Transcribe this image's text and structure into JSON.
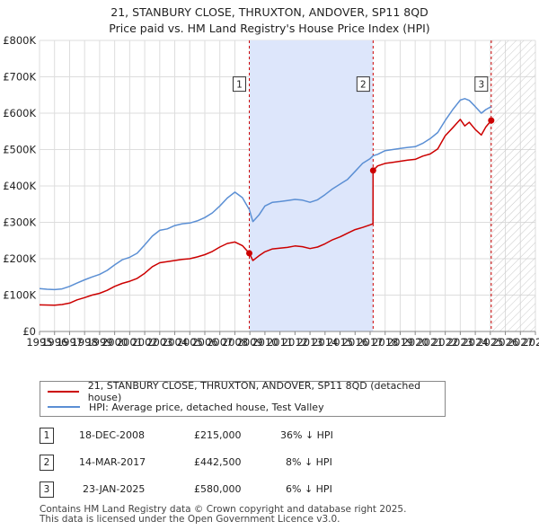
{
  "header": {
    "title": "21, STANBURY CLOSE, THRUXTON, ANDOVER, SP11 8QD",
    "subtitle": "Price paid vs. HM Land Registry's House Price Index (HPI)"
  },
  "chart_data": {
    "type": "line",
    "title": "21, STANBURY CLOSE, THRUXTON, ANDOVER, SP11 8QD",
    "subtitle": "Price paid vs. HM Land Registry's House Price Index (HPI)",
    "xlabel": "",
    "ylabel": "",
    "xlim": [
      1995,
      2028
    ],
    "ylim": [
      0,
      800000
    ],
    "x_ticks": [
      "1995",
      "1996",
      "1997",
      "1998",
      "1999",
      "2000",
      "2001",
      "2002",
      "2003",
      "2004",
      "2005",
      "2006",
      "2007",
      "2008",
      "2009",
      "2010",
      "2011",
      "2012",
      "2013",
      "2014",
      "2015",
      "2016",
      "2017",
      "2018",
      "2019",
      "2020",
      "2021",
      "2022",
      "2023",
      "2024",
      "2025",
      "2026",
      "2027",
      "2028"
    ],
    "y_ticks": [
      {
        "value": 0,
        "label": "£0"
      },
      {
        "value": 100000,
        "label": "£100K"
      },
      {
        "value": 200000,
        "label": "£200K"
      },
      {
        "value": 300000,
        "label": "£300K"
      },
      {
        "value": 400000,
        "label": "£400K"
      },
      {
        "value": 500000,
        "label": "£500K"
      },
      {
        "value": 600000,
        "label": "£600K"
      },
      {
        "value": 700000,
        "label": "£700K"
      },
      {
        "value": 800000,
        "label": "£800K"
      }
    ],
    "grid": true,
    "shaded_period": [
      2008.96,
      2017.2
    ],
    "forecast_from": 2025.06,
    "colors": {
      "property": "#cc0000",
      "hpi": "#5b8fd4",
      "shade": "#dde6fb"
    },
    "series": [
      {
        "name": "21, STANBURY CLOSE, THRUXTON, ANDOVER, SP11 8QD (detached house)",
        "color": "#cc0000",
        "points": [
          [
            1995.0,
            73000
          ],
          [
            1996.0,
            72000
          ],
          [
            1996.5,
            74000
          ],
          [
            1997.0,
            78000
          ],
          [
            1997.5,
            87000
          ],
          [
            1998.0,
            93000
          ],
          [
            1998.5,
            100000
          ],
          [
            1999.0,
            105000
          ],
          [
            1999.5,
            113000
          ],
          [
            2000.0,
            124000
          ],
          [
            2000.5,
            132000
          ],
          [
            2001.0,
            138000
          ],
          [
            2001.5,
            146000
          ],
          [
            2002.0,
            160000
          ],
          [
            2002.5,
            178000
          ],
          [
            2003.0,
            189000
          ],
          [
            2003.5,
            192000
          ],
          [
            2004.0,
            195000
          ],
          [
            2004.5,
            198000
          ],
          [
            2005.0,
            200000
          ],
          [
            2005.5,
            205000
          ],
          [
            2006.0,
            211000
          ],
          [
            2006.5,
            220000
          ],
          [
            2007.0,
            232000
          ],
          [
            2007.5,
            242000
          ],
          [
            2008.0,
            246000
          ],
          [
            2008.5,
            236000
          ],
          [
            2008.96,
            215000
          ],
          [
            2009.2,
            195000
          ],
          [
            2009.6,
            208000
          ],
          [
            2010.0,
            219000
          ],
          [
            2010.5,
            227000
          ],
          [
            2011.0,
            229000
          ],
          [
            2011.5,
            231000
          ],
          [
            2012.0,
            235000
          ],
          [
            2012.5,
            233000
          ],
          [
            2013.0,
            228000
          ],
          [
            2013.5,
            232000
          ],
          [
            2014.0,
            241000
          ],
          [
            2014.5,
            252000
          ],
          [
            2015.0,
            260000
          ],
          [
            2015.5,
            270000
          ],
          [
            2016.0,
            280000
          ],
          [
            2016.5,
            286000
          ],
          [
            2017.0,
            293000
          ],
          [
            2017.19,
            296000
          ],
          [
            2017.2,
            442500
          ],
          [
            2017.5,
            455000
          ],
          [
            2018.0,
            462000
          ],
          [
            2018.5,
            465000
          ],
          [
            2019.0,
            468000
          ],
          [
            2019.5,
            471000
          ],
          [
            2020.0,
            473000
          ],
          [
            2020.5,
            482000
          ],
          [
            2021.0,
            488000
          ],
          [
            2021.5,
            502000
          ],
          [
            2022.0,
            538000
          ],
          [
            2022.5,
            560000
          ],
          [
            2023.0,
            583000
          ],
          [
            2023.3,
            565000
          ],
          [
            2023.6,
            575000
          ],
          [
            2024.0,
            555000
          ],
          [
            2024.4,
            540000
          ],
          [
            2024.7,
            562000
          ],
          [
            2025.06,
            580000
          ]
        ]
      },
      {
        "name": "HPI: Average price, detached house, Test Valley",
        "color": "#5b8fd4",
        "points": [
          [
            1995.0,
            118000
          ],
          [
            1995.5,
            116000
          ],
          [
            1996.0,
            115000
          ],
          [
            1996.5,
            117000
          ],
          [
            1997.0,
            124000
          ],
          [
            1997.5,
            133000
          ],
          [
            1998.0,
            142000
          ],
          [
            1998.5,
            150000
          ],
          [
            1999.0,
            157000
          ],
          [
            1999.5,
            168000
          ],
          [
            2000.0,
            183000
          ],
          [
            2000.5,
            197000
          ],
          [
            2001.0,
            204000
          ],
          [
            2001.5,
            215000
          ],
          [
            2002.0,
            238000
          ],
          [
            2002.5,
            262000
          ],
          [
            2003.0,
            278000
          ],
          [
            2003.5,
            282000
          ],
          [
            2004.0,
            291000
          ],
          [
            2004.5,
            296000
          ],
          [
            2005.0,
            298000
          ],
          [
            2005.5,
            304000
          ],
          [
            2006.0,
            313000
          ],
          [
            2006.5,
            326000
          ],
          [
            2007.0,
            345000
          ],
          [
            2007.5,
            367000
          ],
          [
            2008.0,
            383000
          ],
          [
            2008.5,
            368000
          ],
          [
            2008.96,
            335000
          ],
          [
            2009.2,
            302000
          ],
          [
            2009.6,
            320000
          ],
          [
            2010.0,
            345000
          ],
          [
            2010.5,
            355000
          ],
          [
            2011.0,
            357000
          ],
          [
            2011.5,
            360000
          ],
          [
            2012.0,
            363000
          ],
          [
            2012.5,
            361000
          ],
          [
            2013.0,
            355000
          ],
          [
            2013.5,
            362000
          ],
          [
            2014.0,
            376000
          ],
          [
            2014.5,
            392000
          ],
          [
            2015.0,
            405000
          ],
          [
            2015.5,
            418000
          ],
          [
            2016.0,
            440000
          ],
          [
            2016.5,
            462000
          ],
          [
            2017.0,
            475000
          ],
          [
            2017.2,
            483000
          ],
          [
            2017.5,
            487000
          ],
          [
            2018.0,
            497000
          ],
          [
            2018.5,
            500000
          ],
          [
            2019.0,
            503000
          ],
          [
            2019.5,
            506000
          ],
          [
            2020.0,
            508000
          ],
          [
            2020.5,
            517000
          ],
          [
            2021.0,
            530000
          ],
          [
            2021.5,
            547000
          ],
          [
            2022.0,
            580000
          ],
          [
            2022.5,
            610000
          ],
          [
            2023.0,
            636000
          ],
          [
            2023.3,
            640000
          ],
          [
            2023.6,
            635000
          ],
          [
            2024.0,
            618000
          ],
          [
            2024.4,
            600000
          ],
          [
            2024.7,
            610000
          ],
          [
            2025.06,
            618000
          ]
        ]
      }
    ],
    "sale_markers": [
      {
        "label": "1",
        "x": 2008.96,
        "value": 215000
      },
      {
        "label": "2",
        "x": 2017.2,
        "value": 442500
      },
      {
        "label": "3",
        "x": 2025.06,
        "value": 580000
      }
    ],
    "marker_label_value": 680000
  },
  "legend": {
    "items": [
      {
        "label": "21, STANBURY CLOSE, THRUXTON, ANDOVER, SP11 8QD (detached house)",
        "color": "#cc0000"
      },
      {
        "label": "HPI: Average price, detached house, Test Valley",
        "color": "#5b8fd4"
      }
    ]
  },
  "transactions": [
    {
      "num": "1",
      "date": "18-DEC-2008",
      "price": "£215,000",
      "hpi": "36% ↓ HPI"
    },
    {
      "num": "2",
      "date": "14-MAR-2017",
      "price": "£442,500",
      "hpi": "8% ↓ HPI"
    },
    {
      "num": "3",
      "date": "23-JAN-2025",
      "price": "£580,000",
      "hpi": "6% ↓ HPI"
    }
  ],
  "footer": {
    "line1": "Contains HM Land Registry data © Crown copyright and database right 2025.",
    "line2": "This data is licensed under the Open Government Licence v3.0."
  }
}
